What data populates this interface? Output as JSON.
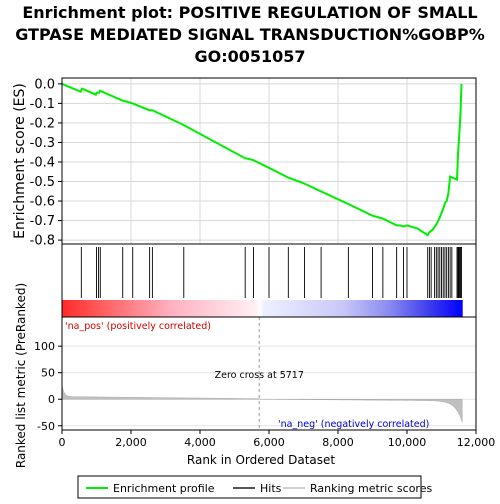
{
  "title_lines": [
    "Enrichment plot: POSITIVE REGULATION OF SMALL",
    "GTPASE MEDIATED SIGNAL TRANSDUCTION%GOBP%",
    "GO:0051057"
  ],
  "chart_data": {
    "type": "line",
    "es_panel": {
      "ylabel": "Enrichment score (ES)",
      "ylim": [
        -0.82,
        0.03
      ],
      "yticks": [
        0.0,
        -0.1,
        -0.2,
        -0.3,
        -0.4,
        -0.5,
        -0.6,
        -0.7,
        -0.8
      ],
      "ytick_labels": [
        "0.0",
        "-0.1",
        "-0.2",
        "-0.3",
        "-0.4",
        "-0.5",
        "-0.6",
        "-0.7",
        "-0.8"
      ],
      "profile": [
        [
          0,
          0.0
        ],
        [
          540,
          -0.04
        ],
        [
          580,
          -0.025
        ],
        [
          980,
          -0.055
        ],
        [
          1000,
          -0.045
        ],
        [
          1080,
          -0.045
        ],
        [
          1100,
          -0.035
        ],
        [
          1750,
          -0.085
        ],
        [
          2050,
          -0.1
        ],
        [
          2530,
          -0.135
        ],
        [
          2620,
          -0.135
        ],
        [
          3520,
          -0.21
        ],
        [
          5300,
          -0.38
        ],
        [
          5540,
          -0.39
        ],
        [
          6000,
          -0.43
        ],
        [
          6560,
          -0.48
        ],
        [
          7020,
          -0.51
        ],
        [
          7500,
          -0.55
        ],
        [
          8300,
          -0.615
        ],
        [
          9000,
          -0.675
        ],
        [
          9300,
          -0.69
        ],
        [
          9700,
          -0.725
        ],
        [
          9800,
          -0.725
        ],
        [
          9900,
          -0.73
        ],
        [
          10000,
          -0.725
        ],
        [
          10300,
          -0.74
        ],
        [
          10600,
          -0.775
        ],
        [
          10650,
          -0.76
        ],
        [
          10750,
          -0.745
        ],
        [
          10850,
          -0.72
        ],
        [
          10950,
          -0.685
        ],
        [
          11000,
          -0.66
        ],
        [
          11050,
          -0.64
        ],
        [
          11100,
          -0.61
        ],
        [
          11150,
          -0.6
        ],
        [
          11200,
          -0.56
        ],
        [
          11250,
          -0.475
        ],
        [
          11450,
          -0.49
        ],
        [
          11480,
          -0.35
        ],
        [
          11520,
          -0.25
        ],
        [
          11550,
          -0.15
        ],
        [
          11580,
          0.0
        ]
      ]
    },
    "hits": [
      560,
      1000,
      1060,
      1110,
      1760,
      2050,
      2540,
      2620,
      3530,
      5310,
      5550,
      6000,
      6560,
      7030,
      7510,
      8300,
      9000,
      9300,
      9700,
      9900,
      10000,
      10600,
      10650,
      10700,
      10800,
      10850,
      10900,
      10950,
      11000,
      11050,
      11100,
      11150,
      11200,
      11250,
      11300,
      11450,
      11480,
      11500,
      11520,
      11550,
      11580
    ],
    "ranked_panel": {
      "ylabel": "Ranked list metric (PreRanked)",
      "ylim": [
        -58,
        155
      ],
      "yticks": [
        100,
        50,
        0,
        -50
      ],
      "ytick_labels": [
        "100",
        "50",
        "0",
        "-50"
      ]
    },
    "x_axis": {
      "xlabel": "Rank in Ordered Dataset",
      "xlim": [
        0,
        12000
      ],
      "xticks": [
        0,
        2000,
        4000,
        6000,
        8000,
        10000,
        12000
      ],
      "xtick_labels": [
        "0",
        "2,000",
        "4,000",
        "6,000",
        "8,000",
        "10,000",
        "12,000"
      ]
    },
    "n_genes": 11600,
    "zero_cross": 5717,
    "annotations": {
      "pos_label": "'na_pos' (positively correlated)",
      "neg_label": "'na_neg' (negatively correlated)",
      "zero_cross_label": "Zero cross at 5717"
    },
    "legend": {
      "placement": "bottom",
      "entries": [
        "Enrichment profile",
        "Hits",
        "Ranking metric scores"
      ]
    },
    "colors": {
      "profile": "#00ee00",
      "hits": "#000000",
      "metric": "#c0c0c0",
      "pos_text": "#cc0000",
      "neg_text": "#0000cc",
      "bar_pos": "#ff0000",
      "bar_mid": "#ffffff",
      "bar_neg": "#0000ff"
    }
  }
}
